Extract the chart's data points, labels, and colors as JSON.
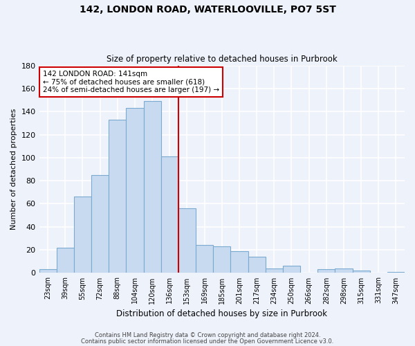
{
  "title": "142, LONDON ROAD, WATERLOOVILLE, PO7 5ST",
  "subtitle": "Size of property relative to detached houses in Purbrook",
  "xlabel": "Distribution of detached houses by size in Purbrook",
  "ylabel": "Number of detached properties",
  "categories": [
    "23sqm",
    "39sqm",
    "55sqm",
    "72sqm",
    "88sqm",
    "104sqm",
    "120sqm",
    "136sqm",
    "153sqm",
    "169sqm",
    "185sqm",
    "201sqm",
    "217sqm",
    "234sqm",
    "250sqm",
    "266sqm",
    "282sqm",
    "298sqm",
    "315sqm",
    "331sqm",
    "347sqm"
  ],
  "values": [
    3,
    22,
    66,
    85,
    133,
    143,
    149,
    101,
    56,
    24,
    23,
    19,
    14,
    4,
    6,
    0,
    3,
    4,
    2,
    0,
    1
  ],
  "bar_color": "#c8daf0",
  "bar_edge_color": "#7aaacf",
  "vline_x_index": 7,
  "vline_color": "#cc0000",
  "annotation_title": "142 LONDON ROAD: 141sqm",
  "annotation_line1": "← 75% of detached houses are smaller (618)",
  "annotation_line2": "24% of semi-detached houses are larger (197) →",
  "annotation_box_color": "#ffffff",
  "annotation_box_edge": "#cc0000",
  "ylim": [
    0,
    180
  ],
  "yticks": [
    0,
    20,
    40,
    60,
    80,
    100,
    120,
    140,
    160,
    180
  ],
  "footer1": "Contains HM Land Registry data © Crown copyright and database right 2024.",
  "footer2": "Contains public sector information licensed under the Open Government Licence v3.0.",
  "bg_color": "#eef2fb"
}
